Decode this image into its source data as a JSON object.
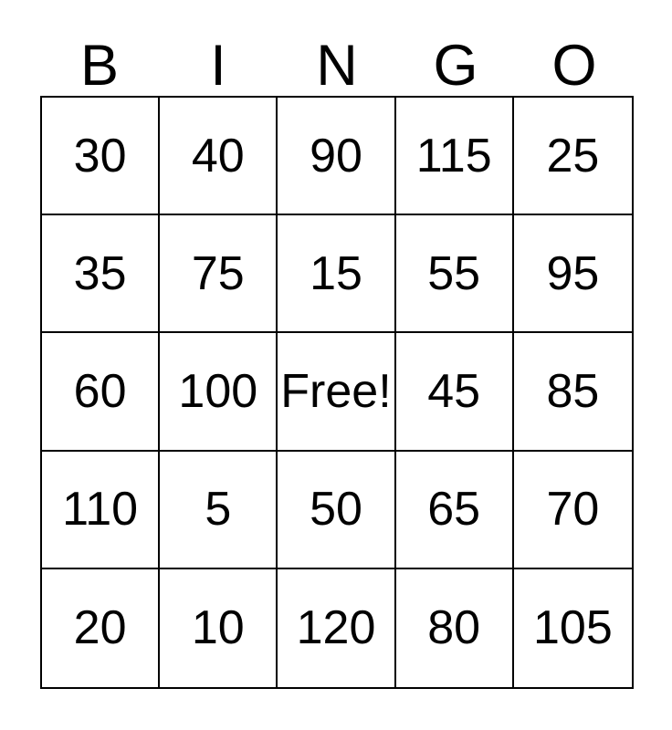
{
  "card": {
    "title": "BINGO",
    "header": {
      "letters": [
        "B",
        "I",
        "N",
        "G",
        "O"
      ]
    },
    "grid": {
      "rows": [
        [
          "30",
          "40",
          "90",
          "115",
          "25"
        ],
        [
          "35",
          "75",
          "15",
          "55",
          "95"
        ],
        [
          "60",
          "100",
          "Free!",
          "45",
          "85"
        ],
        [
          "110",
          "5",
          "50",
          "65",
          "70"
        ],
        [
          "20",
          "10",
          "120",
          "80",
          "105"
        ]
      ],
      "free_cell": {
        "row": 2,
        "col": 2,
        "label": "Free!"
      }
    },
    "colors": {
      "background": "#ffffff",
      "border": "#000000",
      "text": "#000000"
    }
  }
}
